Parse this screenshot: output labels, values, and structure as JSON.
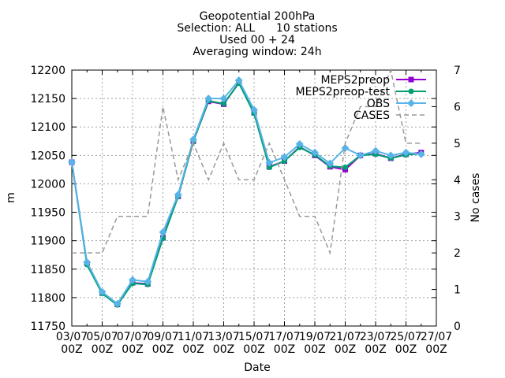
{
  "chart_data": {
    "type": "line",
    "title_lines": [
      "Geopotential 200hPa",
      "Selection: ALL      10 stations",
      "Used 00 + 24",
      "Averaging window: 24h"
    ],
    "xlabel": "Date",
    "ylabel": "m",
    "y2label": "No cases",
    "ylim": [
      11750,
      12200
    ],
    "y2lim": [
      0,
      7
    ],
    "yticks": [
      11750,
      11800,
      11850,
      11900,
      11950,
      12000,
      12050,
      12100,
      12150,
      12200
    ],
    "y2ticks": [
      0,
      1,
      2,
      3,
      4,
      5,
      6,
      7
    ],
    "grid": true,
    "legend_position": "top-right",
    "x": [
      "03/07 00Z",
      "04/07 00Z",
      "05/07 00Z",
      "06/07 00Z",
      "07/07 00Z",
      "08/07 00Z",
      "09/07 00Z",
      "10/07 00Z",
      "11/07 00Z",
      "12/07 00Z",
      "13/07 00Z",
      "14/07 00Z",
      "15/07 00Z",
      "16/07 00Z",
      "17/07 00Z",
      "18/07 00Z",
      "19/07 00Z",
      "20/07 00Z",
      "21/07 00Z",
      "22/07 00Z",
      "23/07 00Z",
      "24/07 00Z",
      "25/07 00Z",
      "26/07 00Z",
      "27/07 00Z"
    ],
    "xtick_labels": [
      [
        "03/07",
        "00Z"
      ],
      [
        "05/07",
        "00Z"
      ],
      [
        "07/07",
        "00Z"
      ],
      [
        "09/07",
        "00Z"
      ],
      [
        "11/07",
        "00Z"
      ],
      [
        "13/07",
        "00Z"
      ],
      [
        "15/07",
        "00Z"
      ],
      [
        "17/07",
        "00Z"
      ],
      [
        "19/07",
        "00Z"
      ],
      [
        "21/07",
        "00Z"
      ],
      [
        "23/07",
        "00Z"
      ],
      [
        "25/07",
        "00Z"
      ],
      [
        "27/07",
        "00Z"
      ]
    ],
    "series": [
      {
        "name": "MEPS2preop",
        "axis": "y1",
        "color": "#9400d3",
        "marker": "square",
        "values": [
          12038,
          11860,
          11808,
          11788,
          11826,
          11824,
          11905,
          11978,
          12075,
          12145,
          12140,
          12178,
          12125,
          12030,
          12040,
          12065,
          12050,
          12030,
          12025,
          12050,
          12053,
          12045,
          12052,
          12055,
          null
        ]
      },
      {
        "name": "MEPS2preop-test",
        "axis": "y1",
        "color": "#009e73",
        "marker": "circle",
        "values": [
          12038,
          11858,
          11807,
          11787,
          11825,
          11823,
          11904,
          11978,
          12075,
          12146,
          12141,
          12177,
          12124,
          12029,
          12040,
          12064,
          12051,
          12031,
          12029,
          12050,
          12052,
          12045,
          12051,
          12053,
          null
        ]
      },
      {
        "name": "OBS",
        "axis": "y1",
        "color": "#56b4e9",
        "marker": "triangle",
        "values": [
          12038,
          11862,
          11810,
          11789,
          11831,
          11828,
          11915,
          11981,
          12078,
          12150,
          12150,
          12182,
          12130,
          12037,
          12047,
          12070,
          12055,
          12036,
          12063,
          12050,
          12058,
          12050,
          12055,
          12052,
          null
        ]
      },
      {
        "name": "CASES",
        "axis": "y2",
        "color": "#999999",
        "dashed": true,
        "values": [
          2,
          2,
          2,
          3,
          3,
          3,
          6,
          4,
          5,
          4,
          5,
          4,
          4,
          5,
          4,
          3,
          3,
          2,
          5,
          6,
          6,
          7,
          5,
          5,
          null
        ]
      }
    ]
  }
}
